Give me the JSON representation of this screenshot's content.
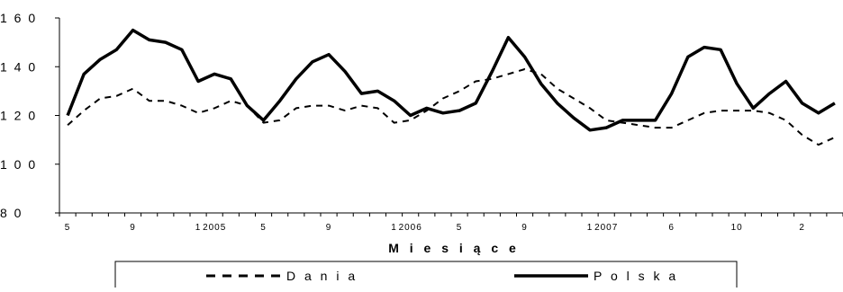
{
  "chart_data": {
    "type": "line",
    "title": "",
    "xlabel": "M i e s i ą c e",
    "ylabel": "",
    "ylim": [
      80,
      160
    ],
    "yticks": [
      80,
      100,
      120,
      140,
      160
    ],
    "ytick_labels": [
      "8 0",
      "1 0 0",
      "1 2 0",
      "1 4 0",
      "1 6 0"
    ],
    "grid": false,
    "legend": "bottom",
    "x_ticks": [
      {
        "index": 0,
        "label": "5"
      },
      {
        "index": 4,
        "label": "9"
      },
      {
        "index": 8,
        "label": "1"
      },
      {
        "index": 9,
        "label": "2005"
      },
      {
        "index": 12,
        "label": "5"
      },
      {
        "index": 16,
        "label": "9"
      },
      {
        "index": 20,
        "label": "1"
      },
      {
        "index": 21,
        "label": "2006"
      },
      {
        "index": 24,
        "label": "5"
      },
      {
        "index": 28,
        "label": "9"
      },
      {
        "index": 32,
        "label": "1"
      },
      {
        "index": 33,
        "label": "2007"
      },
      {
        "index": 37,
        "label": "6"
      },
      {
        "index": 41,
        "label": "10"
      },
      {
        "index": 45,
        "label": "2"
      }
    ],
    "series": [
      {
        "name": "D a n i a",
        "style": "dashed",
        "values": [
          116,
          122,
          127,
          128,
          131,
          126,
          126,
          124,
          121,
          123,
          126,
          124,
          117,
          118,
          123,
          124,
          124,
          122,
          124,
          123,
          117,
          118,
          122,
          127,
          130,
          134,
          135,
          137,
          139,
          137,
          131,
          127,
          123,
          118,
          117,
          116,
          115,
          115,
          118,
          121,
          122,
          122,
          122,
          121,
          118,
          112,
          108,
          111
        ]
      },
      {
        "name": "P o l s k a",
        "style": "solid",
        "values": [
          120,
          137,
          143,
          147,
          155,
          151,
          150,
          147,
          134,
          137,
          135,
          124,
          118,
          126,
          135,
          142,
          145,
          138,
          129,
          130,
          126,
          120,
          123,
          121,
          122,
          125,
          138,
          152,
          144,
          133,
          125,
          119,
          114,
          115,
          118,
          118,
          118,
          129,
          144,
          148,
          147,
          133,
          123,
          129,
          134,
          125,
          121,
          125
        ]
      }
    ]
  }
}
